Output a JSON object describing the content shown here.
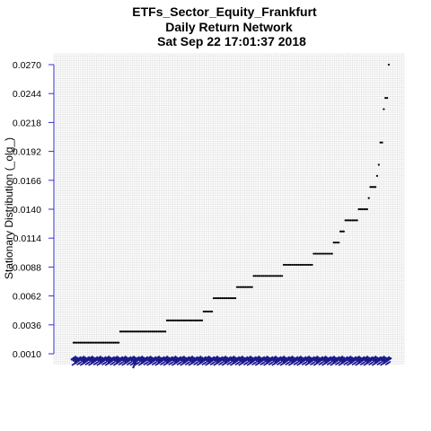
{
  "chart_data": {
    "type": "scatter",
    "title_lines": [
      "ETFs_Sector_Equity_Frankfurt",
      "Daily Return Network",
      "Sat Sep 22 17:01:37 2018"
    ],
    "xlabel": "",
    "ylabel": "Stationary Distribution (_olg_)",
    "ylim": [
      0.001,
      0.027
    ],
    "yticks": [
      "0.0010",
      "0.0036",
      "0.0062",
      "0.0088",
      "0.0114",
      "0.0140",
      "0.0166",
      "0.0192",
      "0.0218",
      "0.0244",
      "0.0270"
    ],
    "grid": true,
    "point_color": "#000000",
    "node_label_color": "#1a1a8c",
    "axis_color": "#3333cc",
    "steps": [
      {
        "count": 28,
        "value": 0.002
      },
      {
        "count": 28,
        "value": 0.003
      },
      {
        "count": 22,
        "value": 0.004
      },
      {
        "count": 6,
        "value": 0.0048
      },
      {
        "count": 14,
        "value": 0.006
      },
      {
        "count": 10,
        "value": 0.007
      },
      {
        "count": 18,
        "value": 0.008
      },
      {
        "count": 18,
        "value": 0.009
      },
      {
        "count": 12,
        "value": 0.01
      },
      {
        "count": 4,
        "value": 0.011
      },
      {
        "count": 3,
        "value": 0.012
      },
      {
        "count": 8,
        "value": 0.013
      },
      {
        "count": 6,
        "value": 0.014
      },
      {
        "count": 1,
        "value": 0.015
      },
      {
        "count": 4,
        "value": 0.016
      },
      {
        "count": 1,
        "value": 0.017
      },
      {
        "count": 1,
        "value": 0.018
      },
      {
        "count": 2,
        "value": 0.02
      },
      {
        "count": 1,
        "value": 0.023
      },
      {
        "count": 2,
        "value": 0.024
      },
      {
        "count": 1,
        "value": 0.027
      }
    ]
  }
}
